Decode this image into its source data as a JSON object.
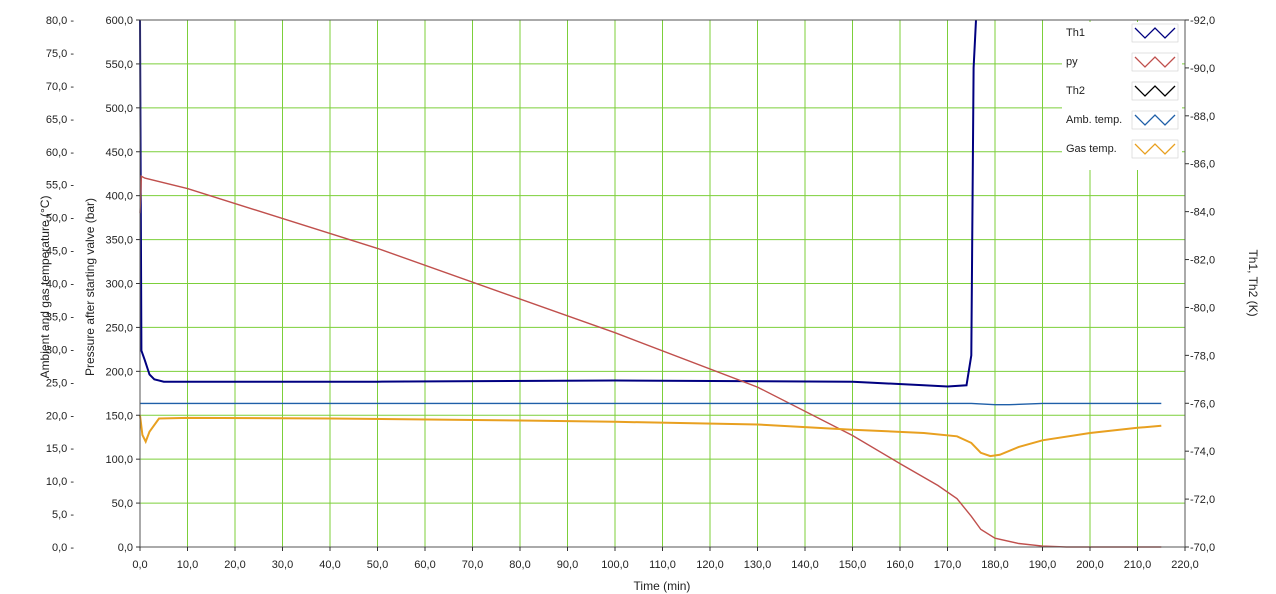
{
  "chart_data": {
    "type": "line",
    "xlabel": "Time (min)",
    "ylabel_left_outer": "Ambient and gas temperature (°C)",
    "ylabel_left_inner": "Pressure after starting valve (bar)",
    "ylabel_right": "Th1, Th2 (K)",
    "xlim": [
      0,
      220
    ],
    "ylim_left_outer": [
      0,
      80
    ],
    "ylim_left_inner": [
      0,
      600
    ],
    "ylim_right": [
      70,
      92
    ],
    "x_ticks": [
      "0,0",
      "10,0",
      "20,0",
      "30,0",
      "40,0",
      "50,0",
      "60,0",
      "70,0",
      "80,0",
      "90,0",
      "100,0",
      "110,0",
      "120,0",
      "130,0",
      "140,0",
      "150,0",
      "160,0",
      "170,0",
      "180,0",
      "190,0",
      "200,0",
      "210,0",
      "220,0"
    ],
    "y_ticks_left_outer": [
      "0,0",
      "5,0",
      "10,0",
      "15,0",
      "20,0",
      "25,0",
      "30,0",
      "35,0",
      "40,0",
      "45,0",
      "50,0",
      "55,0",
      "60,0",
      "65,0",
      "70,0",
      "75,0",
      "80,0"
    ],
    "y_ticks_left_inner": [
      "0,0",
      "50,0",
      "100,0",
      "150,0",
      "200,0",
      "250,0",
      "300,0",
      "350,0",
      "400,0",
      "450,0",
      "500,0",
      "550,0",
      "600,0"
    ],
    "y_ticks_right": [
      "-70,0",
      "-72,0",
      "-74,0",
      "-76,0",
      "-78,0",
      "-80,0",
      "-82,0",
      "-84,0",
      "-86,0",
      "-88,0",
      "-90,0",
      "-92,0"
    ],
    "grid": true,
    "legend_position": "top-right",
    "series": [
      {
        "name": "Th1",
        "axis": "right",
        "color": "#000080",
        "x": [
          0,
          0.3,
          1,
          2,
          3,
          5,
          10,
          50,
          100,
          150,
          165,
          170,
          174,
          175,
          175.5,
          176
        ],
        "y": [
          92,
          78.2,
          77.8,
          77.2,
          77.0,
          76.9,
          76.9,
          76.9,
          76.95,
          76.9,
          76.75,
          76.7,
          76.75,
          78,
          90,
          92
        ]
      },
      {
        "name": "py",
        "axis": "left_inner",
        "color": "#c0504d",
        "x": [
          0,
          0.3,
          1,
          10,
          50,
          100,
          130,
          150,
          160,
          168,
          172,
          175,
          177,
          180,
          185,
          190,
          195,
          200,
          210,
          215
        ],
        "y": [
          380,
          422,
          420,
          408,
          340,
          244,
          182,
          127,
          95,
          70,
          55,
          35,
          20,
          10,
          4,
          1,
          0,
          0,
          0,
          0
        ]
      },
      {
        "name": "Th2",
        "axis": "right",
        "color": "#000000",
        "x": [],
        "y": []
      },
      {
        "name": "Amb. temp.",
        "axis": "left_outer",
        "color": "#1f5fa8",
        "x": [
          0,
          20,
          60,
          100,
          140,
          175,
          180,
          183,
          190,
          200,
          215
        ],
        "y": [
          21.8,
          21.8,
          21.8,
          21.8,
          21.8,
          21.8,
          21.6,
          21.6,
          21.8,
          21.8,
          21.8
        ]
      },
      {
        "name": "Gas temp.",
        "axis": "left_outer",
        "color": "#e8a020",
        "x": [
          0,
          0.5,
          1.2,
          2,
          4,
          10,
          40,
          80,
          100,
          130,
          150,
          165,
          172,
          175,
          177,
          179,
          181,
          185,
          190,
          200,
          210,
          215
        ],
        "y": [
          20.0,
          17.0,
          16.0,
          17.5,
          19.5,
          19.6,
          19.5,
          19.2,
          19.0,
          18.6,
          17.8,
          17.3,
          16.8,
          15.8,
          14.3,
          13.8,
          14.0,
          15.2,
          16.2,
          17.3,
          18.1,
          18.4
        ]
      }
    ]
  }
}
